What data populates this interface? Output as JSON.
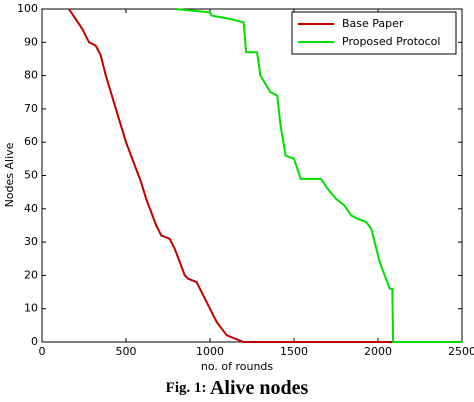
{
  "chart_data": {
    "type": "line",
    "xlabel": "no. of rounds",
    "ylabel": "Nodes Alive",
    "xlim": [
      0,
      2500
    ],
    "xticks": [
      0,
      500,
      1000,
      1500,
      2000,
      2500
    ],
    "ylim": [
      0,
      100
    ],
    "yticks": [
      0,
      10,
      20,
      30,
      40,
      50,
      60,
      70,
      80,
      90,
      100
    ],
    "grid": false,
    "legend": "upper right",
    "series": [
      {
        "name": "Base Paper",
        "color": "#c00000",
        "x": [
          160,
          200,
          240,
          280,
          320,
          350,
          380,
          410,
          440,
          470,
          500,
          530,
          560,
          590,
          620,
          650,
          680,
          710,
          760,
          790,
          820,
          850,
          870,
          920,
          950,
          980,
          1010,
          1040,
          1070,
          1100,
          1150,
          1200,
          2500
        ],
        "values": [
          100,
          97,
          94,
          90,
          89,
          86,
          80,
          75,
          70,
          65,
          60,
          56,
          52,
          48,
          43,
          39,
          35,
          32,
          31,
          28,
          24,
          20,
          19,
          18,
          15,
          12,
          9,
          6,
          4,
          2,
          1,
          0,
          0
        ]
      },
      {
        "name": "Proposed Protocol",
        "color": "#00e000",
        "x": [
          790,
          1000,
          1010,
          1120,
          1200,
          1215,
          1280,
          1300,
          1360,
          1400,
          1420,
          1450,
          1500,
          1520,
          1540,
          1660,
          1700,
          1750,
          1800,
          1840,
          1880,
          1930,
          1960,
          1980,
          2010,
          2040,
          2070,
          2085,
          2090,
          2500
        ],
        "values": [
          100,
          99,
          98,
          97,
          96,
          87,
          87,
          80,
          75,
          74,
          65,
          56,
          55,
          52,
          49,
          49,
          46,
          43,
          41,
          38,
          37,
          36,
          34,
          30,
          24,
          20,
          16,
          16,
          0,
          0
        ]
      }
    ]
  },
  "caption": {
    "label": "Fig. 1:",
    "text": "Alive nodes"
  }
}
